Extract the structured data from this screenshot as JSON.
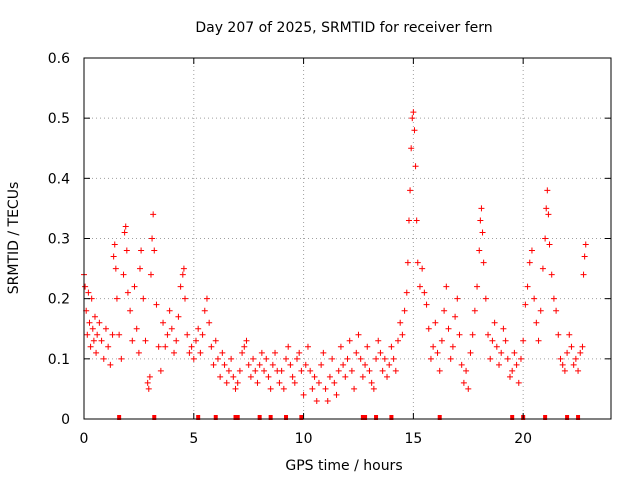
{
  "chart_data": {
    "type": "scatter",
    "title": "Day 207 of 2025, SRMTID for receiver fern",
    "xlabel": "GPS time / hours",
    "ylabel": "SRMTID / TECUs",
    "xlim": [
      0,
      24
    ],
    "ylim": [
      0,
      0.6
    ],
    "xticks": [
      0,
      5,
      10,
      15,
      20
    ],
    "xtick_labels": [
      "0",
      "5",
      "10",
      "15",
      "20"
    ],
    "yticks": [
      0,
      0.1,
      0.2,
      0.3,
      0.4,
      0.5,
      0.6
    ],
    "ytick_labels": [
      "0",
      "0.1",
      "0.2",
      "0.3",
      "0.4",
      "0.5",
      "0.6"
    ],
    "grid": true,
    "marker": "+",
    "color": "#ff0000",
    "series": [
      {
        "name": "SRMTID",
        "points": [
          [
            0.0,
            0.24
          ],
          [
            0.05,
            0.22
          ],
          [
            0.1,
            0.18
          ],
          [
            0.15,
            0.14
          ],
          [
            0.2,
            0.21
          ],
          [
            0.25,
            0.16
          ],
          [
            0.3,
            0.12
          ],
          [
            0.35,
            0.2
          ],
          [
            0.4,
            0.15
          ],
          [
            0.45,
            0.13
          ],
          [
            0.5,
            0.17
          ],
          [
            0.55,
            0.11
          ],
          [
            0.6,
            0.14
          ],
          [
            0.7,
            0.16
          ],
          [
            0.8,
            0.13
          ],
          [
            0.9,
            0.1
          ],
          [
            1.0,
            0.15
          ],
          [
            1.1,
            0.12
          ],
          [
            1.2,
            0.09
          ],
          [
            1.3,
            0.14
          ],
          [
            1.35,
            0.27
          ],
          [
            1.4,
            0.29
          ],
          [
            1.45,
            0.25
          ],
          [
            1.5,
            0.2
          ],
          [
            1.6,
            0.14
          ],
          [
            1.7,
            0.1
          ],
          [
            1.8,
            0.24
          ],
          [
            1.85,
            0.31
          ],
          [
            1.9,
            0.32
          ],
          [
            1.95,
            0.28
          ],
          [
            2.0,
            0.21
          ],
          [
            2.1,
            0.18
          ],
          [
            2.2,
            0.13
          ],
          [
            2.3,
            0.22
          ],
          [
            2.4,
            0.15
          ],
          [
            2.5,
            0.11
          ],
          [
            2.55,
            0.25
          ],
          [
            2.6,
            0.28
          ],
          [
            2.7,
            0.2
          ],
          [
            2.8,
            0.13
          ],
          [
            2.9,
            0.06
          ],
          [
            2.95,
            0.05
          ],
          [
            3.0,
            0.07
          ],
          [
            3.05,
            0.24
          ],
          [
            3.1,
            0.3
          ],
          [
            3.15,
            0.34
          ],
          [
            3.2,
            0.28
          ],
          [
            3.3,
            0.19
          ],
          [
            3.4,
            0.12
          ],
          [
            3.5,
            0.08
          ],
          [
            3.6,
            0.16
          ],
          [
            3.7,
            0.12
          ],
          [
            3.8,
            0.14
          ],
          [
            3.9,
            0.18
          ],
          [
            4.0,
            0.15
          ],
          [
            4.1,
            0.11
          ],
          [
            4.2,
            0.13
          ],
          [
            4.3,
            0.17
          ],
          [
            4.4,
            0.22
          ],
          [
            4.5,
            0.24
          ],
          [
            4.55,
            0.25
          ],
          [
            4.6,
            0.2
          ],
          [
            4.7,
            0.14
          ],
          [
            4.8,
            0.11
          ],
          [
            4.9,
            0.12
          ],
          [
            5.0,
            0.1
          ],
          [
            5.1,
            0.13
          ],
          [
            5.2,
            0.15
          ],
          [
            5.3,
            0.11
          ],
          [
            5.4,
            0.14
          ],
          [
            5.5,
            0.18
          ],
          [
            5.6,
            0.2
          ],
          [
            5.7,
            0.16
          ],
          [
            5.8,
            0.12
          ],
          [
            5.9,
            0.09
          ],
          [
            6.0,
            0.13
          ],
          [
            6.1,
            0.1
          ],
          [
            6.2,
            0.07
          ],
          [
            6.3,
            0.11
          ],
          [
            6.4,
            0.09
          ],
          [
            6.5,
            0.06
          ],
          [
            6.6,
            0.08
          ],
          [
            6.7,
            0.1
          ],
          [
            6.8,
            0.07
          ],
          [
            6.9,
            0.05
          ],
          [
            7.0,
            0.06
          ],
          [
            7.1,
            0.08
          ],
          [
            7.2,
            0.11
          ],
          [
            7.3,
            0.12
          ],
          [
            7.4,
            0.13
          ],
          [
            7.5,
            0.09
          ],
          [
            7.6,
            0.07
          ],
          [
            7.7,
            0.1
          ],
          [
            7.8,
            0.08
          ],
          [
            7.9,
            0.06
          ],
          [
            8.0,
            0.09
          ],
          [
            8.1,
            0.11
          ],
          [
            8.2,
            0.08
          ],
          [
            8.3,
            0.1
          ],
          [
            8.4,
            0.07
          ],
          [
            8.5,
            0.05
          ],
          [
            8.6,
            0.09
          ],
          [
            8.7,
            0.11
          ],
          [
            8.8,
            0.08
          ],
          [
            8.9,
            0.06
          ],
          [
            9.0,
            0.08
          ],
          [
            9.1,
            0.05
          ],
          [
            9.2,
            0.1
          ],
          [
            9.3,
            0.12
          ],
          [
            9.4,
            0.09
          ],
          [
            9.5,
            0.07
          ],
          [
            9.6,
            0.06
          ],
          [
            9.7,
            0.1
          ],
          [
            9.8,
            0.11
          ],
          [
            9.9,
            0.08
          ],
          [
            10.0,
            0.04
          ],
          [
            10.1,
            0.09
          ],
          [
            10.2,
            0.12
          ],
          [
            10.3,
            0.08
          ],
          [
            10.4,
            0.05
          ],
          [
            10.5,
            0.07
          ],
          [
            10.6,
            0.03
          ],
          [
            10.7,
            0.06
          ],
          [
            10.8,
            0.09
          ],
          [
            10.9,
            0.11
          ],
          [
            11.0,
            0.05
          ],
          [
            11.1,
            0.03
          ],
          [
            11.2,
            0.07
          ],
          [
            11.3,
            0.1
          ],
          [
            11.4,
            0.06
          ],
          [
            11.5,
            0.04
          ],
          [
            11.6,
            0.08
          ],
          [
            11.7,
            0.12
          ],
          [
            11.8,
            0.09
          ],
          [
            11.9,
            0.07
          ],
          [
            12.0,
            0.1
          ],
          [
            12.1,
            0.13
          ],
          [
            12.2,
            0.08
          ],
          [
            12.3,
            0.05
          ],
          [
            12.4,
            0.11
          ],
          [
            12.5,
            0.14
          ],
          [
            12.6,
            0.1
          ],
          [
            12.7,
            0.07
          ],
          [
            12.8,
            0.09
          ],
          [
            12.9,
            0.12
          ],
          [
            13.0,
            0.08
          ],
          [
            13.1,
            0.06
          ],
          [
            13.2,
            0.05
          ],
          [
            13.3,
            0.1
          ],
          [
            13.4,
            0.13
          ],
          [
            13.5,
            0.11
          ],
          [
            13.6,
            0.08
          ],
          [
            13.7,
            0.1
          ],
          [
            13.8,
            0.07
          ],
          [
            13.9,
            0.09
          ],
          [
            14.0,
            0.12
          ],
          [
            14.1,
            0.1
          ],
          [
            14.2,
            0.08
          ],
          [
            14.3,
            0.13
          ],
          [
            14.4,
            0.16
          ],
          [
            14.5,
            0.14
          ],
          [
            14.6,
            0.18
          ],
          [
            14.7,
            0.21
          ],
          [
            14.75,
            0.26
          ],
          [
            14.8,
            0.33
          ],
          [
            14.85,
            0.38
          ],
          [
            14.9,
            0.45
          ],
          [
            14.95,
            0.5
          ],
          [
            15.0,
            0.51
          ],
          [
            15.05,
            0.48
          ],
          [
            15.1,
            0.42
          ],
          [
            15.15,
            0.33
          ],
          [
            15.2,
            0.26
          ],
          [
            15.3,
            0.22
          ],
          [
            15.4,
            0.25
          ],
          [
            15.5,
            0.21
          ],
          [
            15.6,
            0.19
          ],
          [
            15.7,
            0.15
          ],
          [
            15.8,
            0.1
          ],
          [
            15.9,
            0.12
          ],
          [
            16.0,
            0.16
          ],
          [
            16.1,
            0.11
          ],
          [
            16.2,
            0.08
          ],
          [
            16.3,
            0.13
          ],
          [
            16.4,
            0.18
          ],
          [
            16.5,
            0.22
          ],
          [
            16.6,
            0.15
          ],
          [
            16.7,
            0.1
          ],
          [
            16.8,
            0.12
          ],
          [
            16.9,
            0.17
          ],
          [
            17.0,
            0.2
          ],
          [
            17.1,
            0.14
          ],
          [
            17.2,
            0.09
          ],
          [
            17.3,
            0.06
          ],
          [
            17.4,
            0.08
          ],
          [
            17.5,
            0.05
          ],
          [
            17.6,
            0.11
          ],
          [
            17.7,
            0.14
          ],
          [
            17.8,
            0.18
          ],
          [
            17.9,
            0.22
          ],
          [
            18.0,
            0.28
          ],
          [
            18.05,
            0.33
          ],
          [
            18.1,
            0.35
          ],
          [
            18.15,
            0.31
          ],
          [
            18.2,
            0.26
          ],
          [
            18.3,
            0.2
          ],
          [
            18.4,
            0.14
          ],
          [
            18.5,
            0.1
          ],
          [
            18.6,
            0.13
          ],
          [
            18.7,
            0.16
          ],
          [
            18.8,
            0.12
          ],
          [
            18.9,
            0.09
          ],
          [
            19.0,
            0.11
          ],
          [
            19.1,
            0.15
          ],
          [
            19.2,
            0.13
          ],
          [
            19.3,
            0.1
          ],
          [
            19.4,
            0.07
          ],
          [
            19.5,
            0.08
          ],
          [
            19.6,
            0.11
          ],
          [
            19.7,
            0.09
          ],
          [
            19.8,
            0.06
          ],
          [
            19.9,
            0.1
          ],
          [
            20.0,
            0.13
          ],
          [
            20.1,
            0.19
          ],
          [
            20.2,
            0.22
          ],
          [
            20.3,
            0.26
          ],
          [
            20.4,
            0.28
          ],
          [
            20.5,
            0.2
          ],
          [
            20.6,
            0.16
          ],
          [
            20.7,
            0.13
          ],
          [
            20.8,
            0.18
          ],
          [
            20.9,
            0.25
          ],
          [
            21.0,
            0.3
          ],
          [
            21.05,
            0.35
          ],
          [
            21.1,
            0.38
          ],
          [
            21.15,
            0.34
          ],
          [
            21.2,
            0.29
          ],
          [
            21.3,
            0.24
          ],
          [
            21.4,
            0.2
          ],
          [
            21.5,
            0.18
          ],
          [
            21.6,
            0.14
          ],
          [
            21.7,
            0.1
          ],
          [
            21.8,
            0.09
          ],
          [
            21.9,
            0.08
          ],
          [
            22.0,
            0.11
          ],
          [
            22.1,
            0.14
          ],
          [
            22.2,
            0.12
          ],
          [
            22.3,
            0.09
          ],
          [
            22.4,
            0.1
          ],
          [
            22.5,
            0.08
          ],
          [
            22.6,
            0.11
          ],
          [
            22.7,
            0.12
          ],
          [
            22.75,
            0.24
          ],
          [
            22.8,
            0.27
          ],
          [
            22.85,
            0.29
          ]
        ]
      }
    ],
    "data_gaps": [
      1.6,
      3.2,
      5.2,
      6.0,
      6.9,
      7.0,
      8.0,
      8.5,
      9.2,
      9.9,
      12.7,
      12.8,
      13.3,
      14.0,
      16.2,
      19.5,
      20.0,
      21.0,
      22.0,
      22.5
    ]
  }
}
